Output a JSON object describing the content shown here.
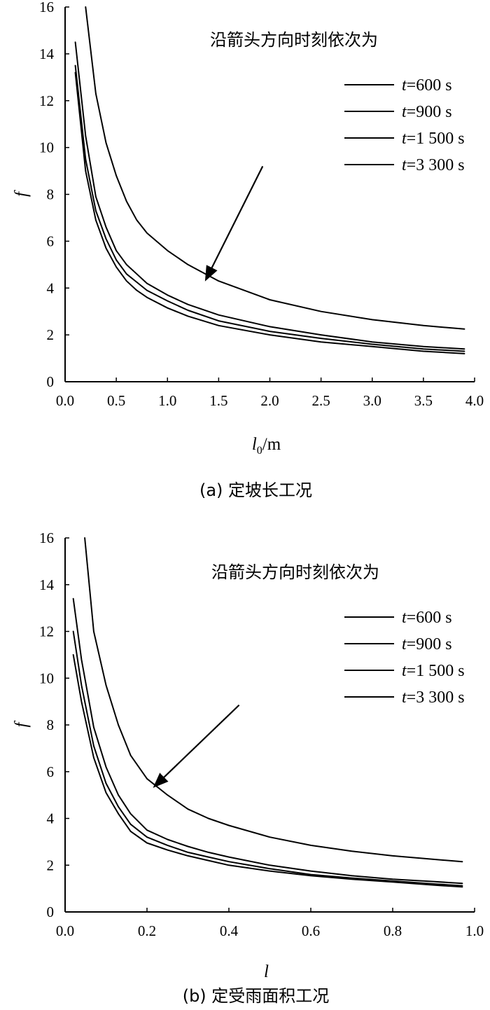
{
  "chart_data": [
    {
      "type": "line",
      "title": "",
      "caption": "(a) 定坡长工况",
      "xlabel_var": "l",
      "xlabel_sub": "0",
      "xlabel_unit": "/m",
      "ylabel": "f",
      "xlim": [
        0,
        4.0
      ],
      "ylim": [
        0,
        16
      ],
      "xticks": [
        "0.0",
        "0.5",
        "1.0",
        "1.5",
        "2.0",
        "2.5",
        "3.0",
        "3.5",
        "4.0"
      ],
      "yticks": [
        "0",
        "2",
        "4",
        "6",
        "8",
        "10",
        "12",
        "14",
        "16"
      ],
      "annotation": "沿箭头方向时刻依次为",
      "arrow": {
        "from": [
          1.93,
          9.2
        ],
        "to": [
          1.38,
          4.4
        ]
      },
      "series": [
        {
          "var": "t",
          "name": "=600 s",
          "x": [
            0.2,
            0.3,
            0.4,
            0.5,
            0.6,
            0.7,
            0.8,
            1.0,
            1.2,
            1.5,
            2.0,
            2.5,
            3.0,
            3.5,
            3.9
          ],
          "y": [
            16.0,
            12.3,
            10.2,
            8.8,
            7.7,
            6.9,
            6.35,
            5.6,
            5.0,
            4.3,
            3.5,
            3.0,
            2.65,
            2.4,
            2.25
          ]
        },
        {
          "var": "t",
          "name": "=900 s",
          "x": [
            0.1,
            0.2,
            0.3,
            0.4,
            0.5,
            0.6,
            0.7,
            0.8,
            1.0,
            1.2,
            1.5,
            2.0,
            2.5,
            3.0,
            3.5,
            3.9
          ],
          "y": [
            14.5,
            10.5,
            7.9,
            6.6,
            5.6,
            5.0,
            4.6,
            4.2,
            3.7,
            3.3,
            2.85,
            2.35,
            2.0,
            1.7,
            1.5,
            1.4
          ]
        },
        {
          "var": "t",
          "name": "=1 500 s",
          "x": [
            0.1,
            0.2,
            0.3,
            0.4,
            0.5,
            0.6,
            0.7,
            0.8,
            1.0,
            1.2,
            1.5,
            2.0,
            2.5,
            3.0,
            3.5,
            3.9
          ],
          "y": [
            13.5,
            9.5,
            7.3,
            6.1,
            5.2,
            4.6,
            4.25,
            3.9,
            3.45,
            3.05,
            2.6,
            2.15,
            1.85,
            1.6,
            1.4,
            1.3
          ]
        },
        {
          "var": "t",
          "name": "=3 300 s",
          "x": [
            0.1,
            0.2,
            0.3,
            0.4,
            0.5,
            0.6,
            0.7,
            0.8,
            1.0,
            1.2,
            1.5,
            2.0,
            2.5,
            3.0,
            3.5,
            3.9
          ],
          "y": [
            13.2,
            9.0,
            6.9,
            5.7,
            4.9,
            4.3,
            3.9,
            3.6,
            3.15,
            2.8,
            2.4,
            2.0,
            1.7,
            1.5,
            1.3,
            1.2
          ]
        }
      ]
    },
    {
      "type": "line",
      "title": "",
      "caption": "(b) 定受雨面积工况",
      "xlabel_var": "l",
      "xlabel_sub": "",
      "xlabel_unit": "",
      "ylabel": "f",
      "xlim": [
        0,
        1.0
      ],
      "ylim": [
        0,
        16
      ],
      "xticks": [
        "0.0",
        "0.2",
        "0.4",
        "0.6",
        "0.8",
        "1.0"
      ],
      "yticks": [
        "0",
        "2",
        "4",
        "6",
        "8",
        "10",
        "12",
        "14",
        "16"
      ],
      "annotation": "沿箭头方向时刻依次为",
      "arrow": {
        "from": [
          0.425,
          8.85
        ],
        "to": [
          0.22,
          5.4
        ]
      },
      "series": [
        {
          "var": "t",
          "name": "=600 s",
          "x": [
            0.048,
            0.07,
            0.1,
            0.13,
            0.16,
            0.2,
            0.25,
            0.3,
            0.35,
            0.4,
            0.5,
            0.6,
            0.7,
            0.8,
            0.9,
            0.97
          ],
          "y": [
            16.0,
            12.0,
            9.7,
            8.0,
            6.7,
            5.7,
            5.0,
            4.4,
            4.0,
            3.7,
            3.2,
            2.85,
            2.6,
            2.4,
            2.25,
            2.15
          ]
        },
        {
          "var": "t",
          "name": "=900 s",
          "x": [
            0.02,
            0.04,
            0.07,
            0.1,
            0.13,
            0.16,
            0.2,
            0.25,
            0.3,
            0.35,
            0.4,
            0.5,
            0.6,
            0.7,
            0.8,
            0.9,
            0.97
          ],
          "y": [
            13.4,
            10.8,
            7.9,
            6.2,
            5.0,
            4.2,
            3.5,
            3.1,
            2.8,
            2.55,
            2.35,
            2.0,
            1.75,
            1.55,
            1.4,
            1.3,
            1.22
          ]
        },
        {
          "var": "t",
          "name": "=1 500 s",
          "x": [
            0.02,
            0.04,
            0.07,
            0.1,
            0.13,
            0.16,
            0.2,
            0.25,
            0.3,
            0.35,
            0.4,
            0.5,
            0.6,
            0.7,
            0.8,
            0.9,
            0.97
          ],
          "y": [
            12.0,
            9.7,
            7.1,
            5.5,
            4.5,
            3.75,
            3.2,
            2.85,
            2.55,
            2.35,
            2.15,
            1.85,
            1.6,
            1.45,
            1.32,
            1.2,
            1.12
          ]
        },
        {
          "var": "t",
          "name": "=3 300 s",
          "x": [
            0.02,
            0.04,
            0.07,
            0.1,
            0.13,
            0.16,
            0.2,
            0.25,
            0.3,
            0.35,
            0.4,
            0.5,
            0.6,
            0.7,
            0.8,
            0.9,
            0.97
          ],
          "y": [
            11.0,
            9.0,
            6.6,
            5.1,
            4.2,
            3.45,
            2.95,
            2.65,
            2.4,
            2.2,
            2.0,
            1.75,
            1.55,
            1.4,
            1.28,
            1.15,
            1.07
          ]
        }
      ]
    }
  ]
}
